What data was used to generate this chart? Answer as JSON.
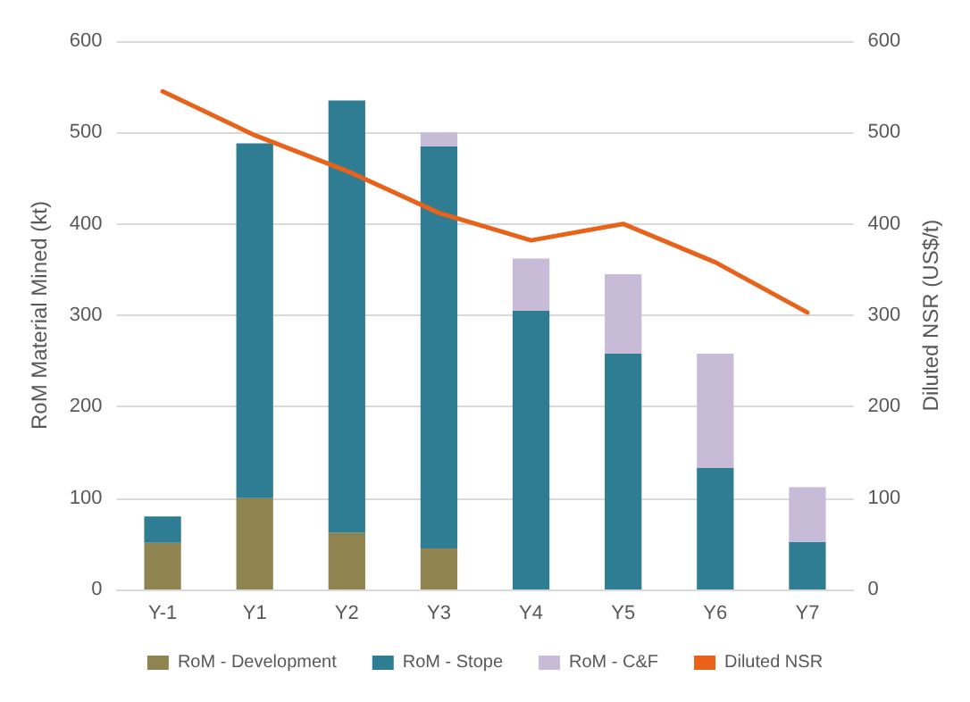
{
  "chart_data": {
    "type": "bar",
    "stacked": true,
    "categories": [
      "Y-1",
      "Y1",
      "Y2",
      "Y3",
      "Y4",
      "Y5",
      "Y6",
      "Y7"
    ],
    "ylabel": "RoM Material Mined (kt)",
    "y2label": "Diluted NSR (US$/t)",
    "ylim": [
      0,
      600
    ],
    "yticks": [
      0,
      100,
      200,
      300,
      400,
      500,
      600
    ],
    "y2lim": [
      0,
      600
    ],
    "y2ticks": [
      0,
      100,
      200,
      300,
      400,
      500,
      600
    ],
    "grid": "y",
    "legend": "bottom",
    "series": [
      {
        "name": "RoM - Development",
        "color": "#8f8450",
        "values": [
          51,
          100,
          62,
          45,
          null,
          null,
          null,
          null
        ]
      },
      {
        "name": "RoM - Stope",
        "color": "#2e7d93",
        "values": [
          29,
          388,
          473,
          440,
          305,
          258,
          133,
          52
        ]
      },
      {
        "name": "RoM - C&F",
        "color": "#c8bbd8",
        "values": [
          null,
          null,
          null,
          15,
          57,
          87,
          125,
          60
        ]
      },
      {
        "name": "Diluted NSR",
        "type": "line",
        "axis": "y2",
        "color": "#e8621a",
        "marker": "none",
        "values": [
          545,
          497,
          458,
          412,
          382,
          400,
          358,
          303
        ]
      }
    ]
  }
}
